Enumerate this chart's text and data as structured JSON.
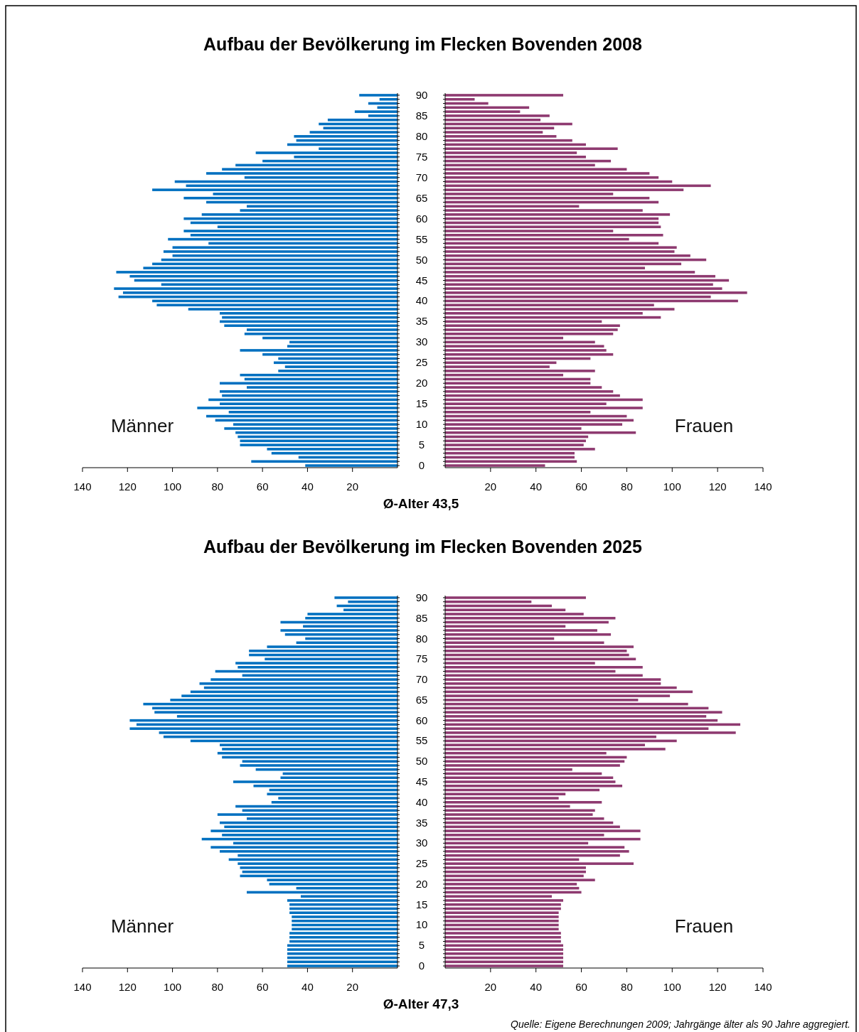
{
  "chart_data": [
    {
      "type": "bar",
      "orientation": "horizontal",
      "title": "Aufbau der Bevölkerung im Flecken Bovenden 2008",
      "xlabel": "Ø-Alter 43,5",
      "tick_labels": "x",
      "categories": [
        "90",
        null,
        null,
        null,
        null,
        "85",
        null,
        null,
        null,
        null,
        "80",
        null,
        null,
        null,
        null,
        "75",
        null,
        null,
        null,
        null,
        "70",
        null,
        null,
        null,
        null,
        "65",
        null,
        null,
        null,
        null,
        "60",
        null,
        null,
        null,
        null,
        "55",
        null,
        null,
        null,
        null,
        "50",
        null,
        null,
        null,
        null,
        "45",
        null,
        null,
        null,
        null,
        "40",
        null,
        null,
        null,
        null,
        "35",
        null,
        null,
        null,
        null,
        "30",
        null,
        null,
        null,
        null,
        "25",
        null,
        null,
        null,
        null,
        "20",
        null,
        null,
        null,
        null,
        "15",
        null,
        null,
        null,
        null,
        "10",
        null,
        null,
        null,
        null,
        "5",
        null,
        null,
        null,
        null,
        "0"
      ],
      "xlim": [
        140,
        0
      ],
      "xticks": [
        140,
        120,
        100,
        80,
        60,
        40,
        20
      ],
      "series": [
        {
          "name": "Männer",
          "color": "#0070c0",
          "values": [
            17,
            8,
            13,
            9,
            19,
            13,
            31,
            35,
            33,
            39,
            46,
            45,
            49,
            35,
            63,
            46,
            60,
            72,
            78,
            85,
            68,
            99,
            94,
            109,
            82,
            95,
            85,
            67,
            70,
            87,
            95,
            92,
            80,
            95,
            92,
            102,
            84,
            100,
            104,
            100,
            105,
            109,
            113,
            125,
            119,
            117,
            105,
            126,
            122,
            124,
            109,
            107,
            93,
            79,
            78,
            79,
            77,
            67,
            68,
            60,
            48,
            49,
            70,
            60,
            53,
            55,
            50,
            53,
            70,
            68,
            79,
            67,
            79,
            78,
            84,
            79,
            89,
            75,
            85,
            81,
            73,
            77,
            72,
            71,
            70,
            70,
            58,
            56,
            44,
            65,
            41
          ]
        }
      ]
    },
    {
      "type": "bar",
      "orientation": "horizontal",
      "categories": [
        "90",
        null,
        null,
        null,
        null,
        "85",
        null,
        null,
        null,
        null,
        "80",
        null,
        null,
        null,
        null,
        "75",
        null,
        null,
        null,
        null,
        "70",
        null,
        null,
        null,
        null,
        "65",
        null,
        null,
        null,
        null,
        "60",
        null,
        null,
        null,
        null,
        "55",
        null,
        null,
        null,
        null,
        "50",
        null,
        null,
        null,
        null,
        "45",
        null,
        null,
        null,
        null,
        "40",
        null,
        null,
        null,
        null,
        "35",
        null,
        null,
        null,
        null,
        "30",
        null,
        null,
        null,
        null,
        "25",
        null,
        null,
        null,
        null,
        "20",
        null,
        null,
        null,
        null,
        "15",
        null,
        null,
        null,
        null,
        "10",
        null,
        null,
        null,
        null,
        "5",
        null,
        null,
        null,
        null,
        "0"
      ],
      "xlim": [
        0,
        140
      ],
      "xticks": [
        20,
        40,
        60,
        80,
        100,
        120,
        140
      ],
      "series": [
        {
          "name": "Frauen",
          "color": "#8e3a70",
          "values": [
            52,
            13,
            19,
            37,
            33,
            46,
            42,
            56,
            48,
            43,
            49,
            56,
            62,
            76,
            58,
            62,
            73,
            66,
            80,
            90,
            94,
            100,
            117,
            105,
            74,
            90,
            94,
            59,
            87,
            99,
            94,
            94,
            95,
            74,
            96,
            81,
            94,
            102,
            101,
            108,
            115,
            104,
            88,
            110,
            119,
            125,
            118,
            122,
            133,
            117,
            129,
            92,
            101,
            87,
            95,
            69,
            77,
            76,
            74,
            52,
            66,
            70,
            71,
            74,
            64,
            49,
            46,
            66,
            52,
            64,
            64,
            69,
            74,
            77,
            87,
            71,
            87,
            64,
            80,
            83,
            78,
            60,
            84,
            63,
            62,
            61,
            66,
            57,
            57,
            58,
            44
          ]
        }
      ]
    },
    {
      "type": "bar",
      "orientation": "horizontal",
      "title": "Aufbau der Bevölkerung im Flecken Bovenden 2025",
      "xlabel": "Ø-Alter 47,3",
      "tick_labels": "x",
      "categories": [
        "90",
        null,
        null,
        null,
        null,
        "85",
        null,
        null,
        null,
        null,
        "80",
        null,
        null,
        null,
        null,
        "75",
        null,
        null,
        null,
        null,
        "70",
        null,
        null,
        null,
        null,
        "65",
        null,
        null,
        null,
        null,
        "60",
        null,
        null,
        null,
        null,
        "55",
        null,
        null,
        null,
        null,
        "50",
        null,
        null,
        null,
        null,
        "45",
        null,
        null,
        null,
        null,
        "40",
        null,
        null,
        null,
        null,
        "35",
        null,
        null,
        null,
        null,
        "30",
        null,
        null,
        null,
        null,
        "25",
        null,
        null,
        null,
        null,
        "20",
        null,
        null,
        null,
        null,
        "15",
        null,
        null,
        null,
        null,
        "10",
        null,
        null,
        null,
        null,
        "5",
        null,
        null,
        null,
        null,
        "0"
      ],
      "xlim": [
        140,
        0
      ],
      "xticks": [
        140,
        120,
        100,
        80,
        60,
        40,
        20
      ],
      "series": [
        {
          "name": "Männer",
          "color": "#0070c0",
          "values": [
            28,
            22,
            27,
            24,
            40,
            41,
            52,
            42,
            52,
            50,
            41,
            45,
            58,
            66,
            66,
            59,
            72,
            71,
            81,
            69,
            83,
            88,
            86,
            92,
            96,
            101,
            113,
            109,
            108,
            98,
            119,
            116,
            119,
            106,
            104,
            92,
            79,
            78,
            80,
            78,
            69,
            70,
            63,
            51,
            52,
            73,
            64,
            57,
            58,
            53,
            56,
            72,
            69,
            80,
            67,
            79,
            77,
            83,
            78,
            87,
            73,
            83,
            79,
            71,
            75,
            71,
            70,
            69,
            70,
            58,
            57,
            45,
            67,
            43,
            49,
            48,
            48,
            48,
            47,
            47,
            47,
            47,
            48,
            48,
            48,
            49,
            49,
            49,
            49,
            49,
            49
          ]
        }
      ]
    },
    {
      "type": "bar",
      "orientation": "horizontal",
      "annotations": [
        "Quelle: Eigene Berechnungen 2009; Jahrgänge älter als 90 Jahre aggregiert."
      ],
      "categories": [
        "90",
        null,
        null,
        null,
        null,
        "85",
        null,
        null,
        null,
        null,
        "80",
        null,
        null,
        null,
        null,
        "75",
        null,
        null,
        null,
        null,
        "70",
        null,
        null,
        null,
        null,
        "65",
        null,
        null,
        null,
        null,
        "60",
        null,
        null,
        null,
        null,
        "55",
        null,
        null,
        null,
        null,
        "50",
        null,
        null,
        null,
        null,
        "45",
        null,
        null,
        null,
        null,
        "40",
        null,
        null,
        null,
        null,
        "35",
        null,
        null,
        null,
        null,
        "30",
        null,
        null,
        null,
        null,
        "25",
        null,
        null,
        null,
        null,
        "20",
        null,
        null,
        null,
        null,
        "15",
        null,
        null,
        null,
        null,
        "10",
        null,
        null,
        null,
        null,
        "5",
        null,
        null,
        null,
        null,
        "0"
      ],
      "xlim": [
        0,
        140
      ],
      "xticks": [
        20,
        40,
        60,
        80,
        100,
        120,
        140
      ],
      "series": [
        {
          "name": "Frauen",
          "color": "#8e3a70",
          "values": [
            62,
            38,
            47,
            53,
            61,
            75,
            72,
            53,
            67,
            73,
            48,
            70,
            83,
            80,
            81,
            84,
            66,
            87,
            75,
            87,
            95,
            95,
            102,
            109,
            99,
            85,
            107,
            116,
            122,
            115,
            120,
            130,
            116,
            128,
            93,
            102,
            88,
            97,
            71,
            80,
            79,
            77,
            56,
            69,
            74,
            75,
            78,
            68,
            53,
            50,
            69,
            55,
            66,
            65,
            70,
            74,
            77,
            86,
            70,
            86,
            63,
            79,
            81,
            77,
            59,
            83,
            62,
            62,
            61,
            66,
            58,
            59,
            60,
            47,
            52,
            51,
            51,
            50,
            50,
            50,
            50,
            50,
            51,
            51,
            51,
            52,
            52,
            52,
            52,
            52,
            52
          ]
        }
      ]
    }
  ]
}
